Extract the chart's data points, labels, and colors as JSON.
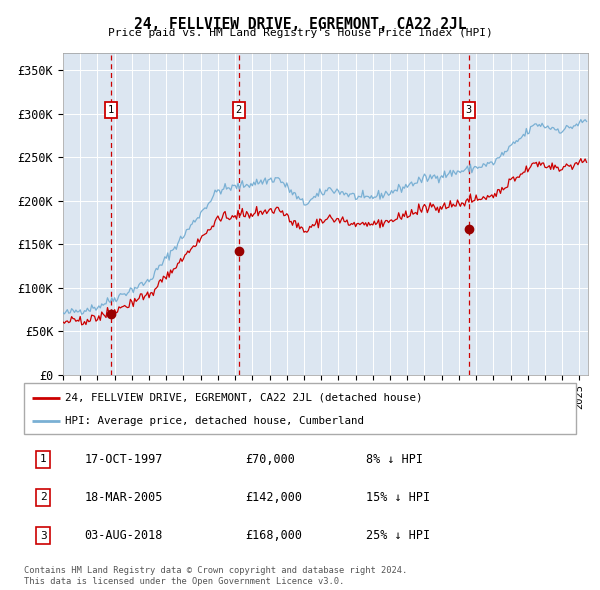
{
  "title": "24, FELLVIEW DRIVE, EGREMONT, CA22 2JL",
  "subtitle": "Price paid vs. HM Land Registry's House Price Index (HPI)",
  "ylim": [
    0,
    370000
  ],
  "yticks": [
    0,
    50000,
    100000,
    150000,
    200000,
    250000,
    300000,
    350000
  ],
  "ytick_labels": [
    "£0",
    "£50K",
    "£100K",
    "£150K",
    "£200K",
    "£250K",
    "£300K",
    "£350K"
  ],
  "xlim_start": 1995.0,
  "xlim_end": 2025.5,
  "background_color": "#dce6f1",
  "hpi_line_color": "#7ab0d4",
  "price_line_color": "#cc0000",
  "marker_color": "#990000",
  "vline_color": "#cc0000",
  "sale1_date": 1997.79,
  "sale1_price": 70000,
  "sale2_date": 2005.21,
  "sale2_price": 142000,
  "sale3_date": 2018.58,
  "sale3_price": 168000,
  "legend_line1": "24, FELLVIEW DRIVE, EGREMONT, CA22 2JL (detached house)",
  "legend_line2": "HPI: Average price, detached house, Cumberland",
  "table_row1_num": "1",
  "table_row1_date": "17-OCT-1997",
  "table_row1_price": "£70,000",
  "table_row1_hpi": "8% ↓ HPI",
  "table_row2_num": "2",
  "table_row2_date": "18-MAR-2005",
  "table_row2_price": "£142,000",
  "table_row2_hpi": "15% ↓ HPI",
  "table_row3_num": "3",
  "table_row3_date": "03-AUG-2018",
  "table_row3_price": "£168,000",
  "table_row3_hpi": "25% ↓ HPI",
  "footer": "Contains HM Land Registry data © Crown copyright and database right 2024.\nThis data is licensed under the Open Government Licence v3.0."
}
